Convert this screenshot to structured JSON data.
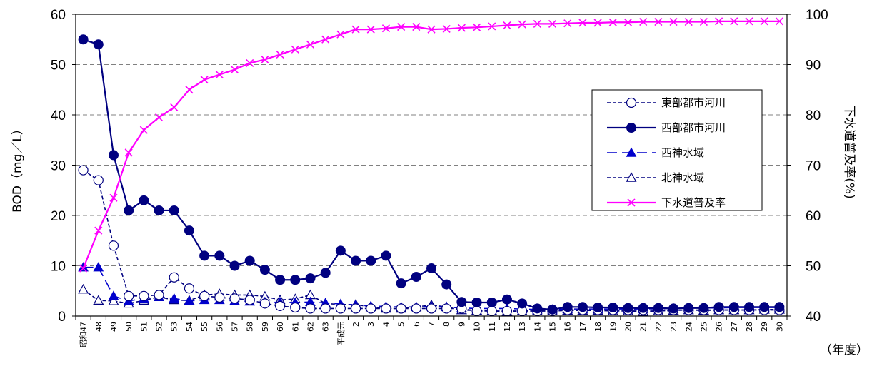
{
  "chart_data": {
    "type": "line",
    "ylabel": "BOD（mg／L）",
    "y2label": "下水道普及率(%)",
    "xunit": "（年度）",
    "ylim": [
      0,
      60
    ],
    "y2lim": [
      40,
      100
    ],
    "yticks": [
      "0",
      "10",
      "20",
      "30",
      "40",
      "50",
      "60"
    ],
    "y2ticks": [
      "40",
      "50",
      "60",
      "70",
      "80",
      "90",
      "100"
    ],
    "grid": true,
    "legend_position": "right",
    "categories": [
      "昭和47",
      "48",
      "49",
      "50",
      "51",
      "52",
      "53",
      "54",
      "55",
      "56",
      "57",
      "58",
      "59",
      "60",
      "61",
      "62",
      "63",
      "平成元",
      "2",
      "3",
      "4",
      "5",
      "6",
      "7",
      "8",
      "9",
      "10",
      "11",
      "12",
      "13",
      "14",
      "15",
      "16",
      "17",
      "18",
      "19",
      "20",
      "21",
      "22",
      "23",
      "24",
      "25",
      "26",
      "27",
      "28",
      "29",
      "30"
    ],
    "series": [
      {
        "name": "東部都市河川",
        "axis": "left",
        "color": "#000080",
        "dash": "dashed",
        "marker": "circle-open",
        "values": [
          29,
          27,
          14,
          4,
          4,
          4.2,
          7.7,
          5.5,
          4,
          3.7,
          3.5,
          3.2,
          2.5,
          2,
          1.7,
          1.5,
          1.5,
          1.5,
          1.5,
          1.5,
          1.5,
          1.5,
          1.5,
          1.5,
          1.5,
          1.5,
          1.0,
          1.0,
          1.0,
          1.0,
          1.0,
          1.0,
          1.2,
          1.2,
          1.2,
          1.2,
          1.2,
          1.2,
          1.2,
          1.2,
          1.2,
          1.2,
          1.2,
          1.2,
          1.2,
          1.2,
          1.2
        ]
      },
      {
        "name": "西部都市河川",
        "axis": "left",
        "color": "#000080",
        "dash": "solid",
        "marker": "circle-filled",
        "values": [
          55,
          54,
          32,
          21,
          23,
          21,
          21,
          17,
          12,
          12,
          10,
          11,
          9.2,
          7.2,
          7.2,
          7.5,
          8.6,
          13,
          11,
          11,
          12,
          6.5,
          7.8,
          9.5,
          6.3,
          2.8,
          2.7,
          2.7,
          3.3,
          2.5,
          1.5,
          1.3,
          1.8,
          1.8,
          1.7,
          1.7,
          1.6,
          1.6,
          1.6,
          1.5,
          1.6,
          1.6,
          1.8,
          1.8,
          1.8,
          1.8,
          1.8
        ]
      },
      {
        "name": "西神水域",
        "axis": "left",
        "color": "#0000CC",
        "dash": "longdash",
        "marker": "triangle-filled",
        "values": [
          9.7,
          9.7,
          4,
          3,
          3.5,
          3.8,
          3.5,
          3,
          3.2,
          3.2,
          3,
          2.9,
          2.8,
          2.7,
          2.7,
          2.8,
          2.6,
          2.4,
          2.2,
          2,
          1.9,
          1.8,
          1.8,
          1.9,
          1.8,
          1.6,
          1.5,
          1.5,
          1.5,
          1.4,
          1.3,
          1.3,
          1.4,
          1.4,
          1.4,
          1.4,
          1.4,
          1.4,
          1.5,
          1.5,
          1.6,
          1.6,
          1.6,
          1.7,
          1.7,
          1.7,
          1.7
        ]
      },
      {
        "name": "北神水域",
        "axis": "left",
        "color": "#000080",
        "dash": "dashed",
        "marker": "triangle-open",
        "values": [
          5.3,
          3.1,
          3,
          2.5,
          3.1,
          3.8,
          3.2,
          3.1,
          4.2,
          4.4,
          4.2,
          4.2,
          3.9,
          3.2,
          3.4,
          4.2,
          2.5,
          2.3,
          2.3,
          1.8,
          1.5,
          1.5,
          1.8,
          2.2,
          1.8,
          1.2,
          1.1,
          1.0,
          0.9,
          1.0,
          1.0,
          1.0,
          1.1,
          1.1,
          1.1,
          1.0,
          1.0,
          0.9,
          1.0,
          1.1,
          1.2,
          1.1,
          1.2,
          1.2,
          1.2,
          1.3,
          1.3
        ]
      },
      {
        "name": "下水道普及率",
        "axis": "right",
        "color": "#FF00FF",
        "dash": "solid",
        "marker": "x",
        "values": [
          49.5,
          57,
          63.5,
          72.5,
          77,
          79.5,
          81.5,
          85,
          87,
          88,
          89,
          90.3,
          91,
          92,
          93,
          94,
          95,
          96,
          97,
          97,
          97.2,
          97.5,
          97.5,
          97,
          97.1,
          97.3,
          97.4,
          97.6,
          97.8,
          98,
          98.1,
          98.1,
          98.2,
          98.3,
          98.3,
          98.4,
          98.4,
          98.5,
          98.5,
          98.5,
          98.5,
          98.5,
          98.6,
          98.6,
          98.6,
          98.6,
          98.6
        ]
      }
    ]
  }
}
